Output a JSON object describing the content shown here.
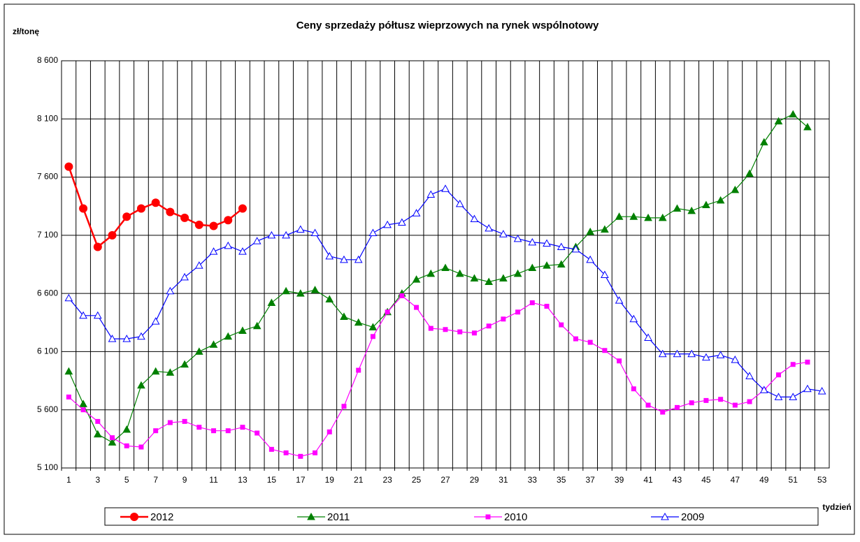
{
  "chart_data": {
    "type": "line",
    "title": "Ceny sprzedaży półtusz wieprzowych na rynek wspólnotowy",
    "y_label": "zł/tonę",
    "x_label": "tydzień",
    "categories": [
      "1",
      null,
      "3",
      null,
      "5",
      null,
      "7",
      null,
      "9",
      null,
      "11",
      null,
      "13",
      null,
      "15",
      null,
      "17",
      null,
      "19",
      null,
      "21",
      null,
      "23",
      null,
      "25",
      null,
      "27",
      null,
      "29",
      null,
      "31",
      null,
      "33",
      null,
      "35",
      null,
      "37",
      null,
      "39",
      null,
      "41",
      null,
      "43",
      null,
      "45",
      null,
      "47",
      null,
      "49",
      null,
      "51",
      null,
      "53"
    ],
    "ylim": [
      5100,
      8600
    ],
    "yticks": [
      {
        "value": 5100,
        "label": "5 100"
      },
      {
        "value": 5600,
        "label": "5 600"
      },
      {
        "value": 6100,
        "label": "6 100"
      },
      {
        "value": 6600,
        "label": "6 600"
      },
      {
        "value": 7100,
        "label": "7 100"
      },
      {
        "value": 7600,
        "label": "7 600"
      },
      {
        "value": 8100,
        "label": "8 100"
      },
      {
        "value": 8600,
        "label": "8 600"
      }
    ],
    "grid": true,
    "series": [
      {
        "name": "2012",
        "color": "#ff0000",
        "marker": "circle",
        "values": [
          7690,
          7330,
          7000,
          7100,
          7260,
          7330,
          7380,
          7300,
          7250,
          7190,
          7180,
          7230,
          7330,
          null,
          null,
          null,
          null,
          null,
          null,
          null,
          null,
          null,
          null,
          null,
          null,
          null,
          null,
          null,
          null,
          null,
          null,
          null,
          null,
          null,
          null,
          null,
          null,
          null,
          null,
          null,
          null,
          null,
          null,
          null,
          null,
          null,
          null,
          null,
          null,
          null,
          null,
          null,
          null
        ]
      },
      {
        "name": "2011",
        "color": "#008000",
        "marker": "triangle",
        "values": [
          5930,
          5650,
          5390,
          5320,
          5430,
          5810,
          5930,
          5920,
          5990,
          6100,
          6160,
          6230,
          6280,
          6320,
          6520,
          6620,
          6600,
          6630,
          6550,
          6400,
          6350,
          6310,
          6440,
          6600,
          6720,
          6770,
          6820,
          6770,
          6730,
          6700,
          6730,
          6770,
          6820,
          6840,
          6850,
          7000,
          7130,
          7150,
          7260,
          7260,
          7250,
          7250,
          7330,
          7310,
          7360,
          7400,
          7490,
          7630,
          7900,
          8080,
          8140,
          8030,
          null
        ]
      },
      {
        "name": "2010",
        "color": "#ff00ff",
        "marker": "square",
        "values": [
          5710,
          5600,
          5500,
          5360,
          5290,
          5280,
          5420,
          5490,
          5500,
          5450,
          5420,
          5420,
          5450,
          5400,
          5260,
          5230,
          5200,
          5230,
          5410,
          5630,
          5940,
          6230,
          6440,
          6580,
          6480,
          6300,
          6290,
          6270,
          6260,
          6320,
          6380,
          6440,
          6520,
          6490,
          6330,
          6210,
          6180,
          6110,
          6020,
          5780,
          5640,
          5580,
          5620,
          5660,
          5680,
          5690,
          5640,
          5670,
          5770,
          5900,
          5990,
          6010,
          null
        ]
      },
      {
        "name": "2009",
        "color": "#0000ff",
        "marker": "open-triangle",
        "values": [
          6560,
          6410,
          6410,
          6210,
          6210,
          6230,
          6360,
          6620,
          6740,
          6840,
          6960,
          7010,
          6960,
          7050,
          7100,
          7100,
          7150,
          7120,
          6920,
          6890,
          6890,
          7120,
          7190,
          7210,
          7290,
          7450,
          7500,
          7370,
          7240,
          7160,
          7110,
          7070,
          7040,
          7030,
          7000,
          6980,
          6890,
          6760,
          6540,
          6380,
          6220,
          6080,
          6080,
          6080,
          6050,
          6070,
          6030,
          5890,
          5770,
          5710,
          5710,
          5780,
          5760
        ]
      }
    ]
  }
}
